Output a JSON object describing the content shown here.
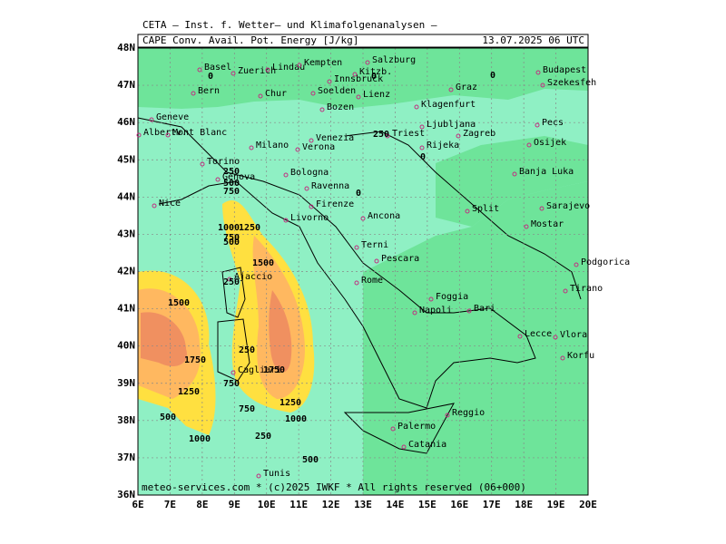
{
  "header": {
    "title": "CETA — Inst. f. Wetter— und Klimafolgenanalysen —",
    "field": "CAPE Conv. Avail. Pot. Energy [J/kg]",
    "date": "13.07.2025 06 UTC"
  },
  "axes": {
    "lon_labels": [
      "6E",
      "7E",
      "8E",
      "9E",
      "10E",
      "11E",
      "12E",
      "13E",
      "14E",
      "15E",
      "16E",
      "17E",
      "18E",
      "19E",
      "20E"
    ],
    "lat_labels": [
      "48N",
      "47N",
      "46N",
      "45N",
      "44N",
      "43N",
      "42N",
      "41N",
      "40N",
      "39N",
      "38N",
      "37N",
      "36N"
    ]
  },
  "cities": [
    "Basel",
    "Zuerich",
    "Lindau",
    "Kempten",
    "Salzburg",
    "Kitzb.",
    "Innsbruck",
    "Lienz",
    "Bern",
    "Chur",
    "Soelden",
    "Graz",
    "Budapest",
    "Szekesfeh",
    "Klagenfurt",
    "Bozen",
    "Ljubljana",
    "Geneve",
    "Albertv.",
    "Mont Blanc",
    "Venezia",
    "Triest",
    "Zagreb",
    "Pecs",
    "Milano",
    "Verona",
    "Rijeka",
    "Osijek",
    "Torino",
    "Bologna",
    "Banja Luka",
    "Genova",
    "Ravenna",
    "Nice",
    "Firenze",
    "Split",
    "Sarajevo",
    "Livorno",
    "Ancona",
    "Mostar",
    "Terni",
    "Podgorica",
    "Pescara",
    "Ajaccio",
    "Rome",
    "Tirano",
    "Foggia",
    "Bari",
    "Napoli",
    "Lecce",
    "Vlora",
    "Korfu",
    "Cagliari",
    "Palermo",
    "Reggio",
    "Catania",
    "Tunis"
  ],
  "contour_labels": [
    0,
    0,
    0,
    250,
    0,
    250,
    500,
    750,
    0,
    1000,
    1250,
    750,
    500,
    1500,
    250,
    1500,
    250,
    1750,
    1750,
    750,
    1250,
    1250,
    750,
    500,
    1000,
    1000,
    250,
    500
  ],
  "footer": "meteo-services.com * (c)2025 IWKF * All rights reserved (06+000)"
}
